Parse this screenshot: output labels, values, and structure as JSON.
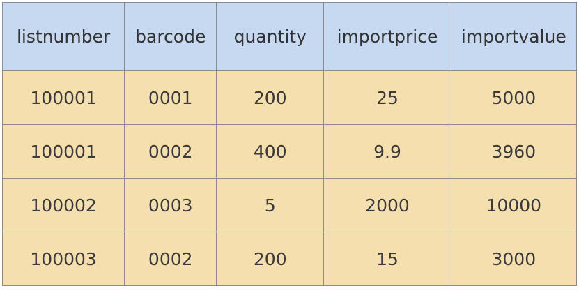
{
  "table": {
    "columns": [
      "listnumber",
      "barcode",
      "quantity",
      "importprice",
      "importvalue"
    ],
    "rows": [
      [
        "100001",
        "0001",
        "200",
        "25",
        "5000"
      ],
      [
        "100001",
        "0002",
        "400",
        "9.9",
        "3960"
      ],
      [
        "100002",
        "0003",
        "5",
        "2000",
        "10000"
      ],
      [
        "100003",
        "0002",
        "200",
        "15",
        "3000"
      ]
    ],
    "colors": {
      "header_bg": "#c7d9f1",
      "body_bg": "#f6dfae",
      "border": "#8c8c8c"
    }
  }
}
